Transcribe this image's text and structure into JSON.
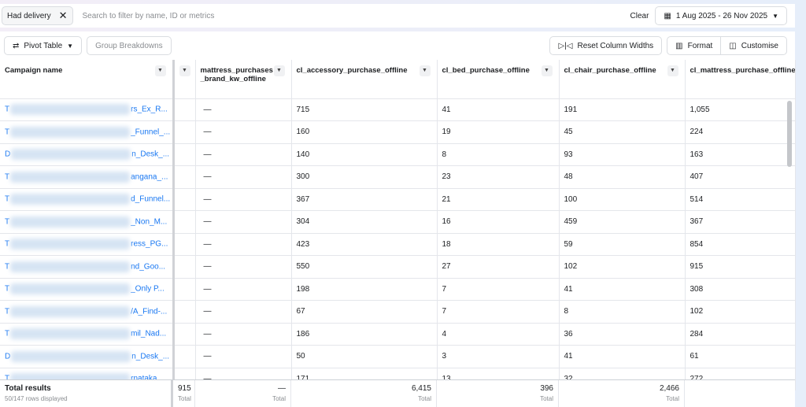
{
  "filter": {
    "chip": "Had delivery",
    "search_placeholder": "Search to filter by name, ID or metrics",
    "clear": "Clear",
    "date_range": "1 Aug 2025 - 26 Nov 2025"
  },
  "toolbar": {
    "pivot": "Pivot Table",
    "group": "Group Breakdowns",
    "reset": "Reset Column Widths",
    "format": "Format",
    "customise": "Customise"
  },
  "columns": [
    "Campaign name",
    "",
    "mattress_purchases_brand_kw_offline",
    "cl_accessory_purchase_offline",
    "cl_bed_purchase_offline",
    "cl_chair_purchase_offline",
    "cl_mattress_purchase_offline"
  ],
  "rows": [
    {
      "p": "T",
      "s": "rs_Ex_R...",
      "c": [
        "",
        "—",
        "715",
        "41",
        "191",
        "1,055"
      ]
    },
    {
      "p": "T",
      "s": "_Funnel_...",
      "c": [
        "",
        "—",
        "160",
        "19",
        "45",
        "224"
      ]
    },
    {
      "p": "D",
      "s": "n_Desk_...",
      "c": [
        "",
        "—",
        "140",
        "8",
        "93",
        "163"
      ]
    },
    {
      "p": "T",
      "s": "angana_...",
      "c": [
        "",
        "—",
        "300",
        "23",
        "48",
        "407"
      ]
    },
    {
      "p": "T",
      "s": "d_Funnel...",
      "c": [
        "",
        "—",
        "367",
        "21",
        "100",
        "514"
      ]
    },
    {
      "p": "T",
      "s": "_Non_M...",
      "c": [
        "",
        "—",
        "304",
        "16",
        "459",
        "367"
      ]
    },
    {
      "p": "T",
      "s": "ress_PG...",
      "c": [
        "",
        "—",
        "423",
        "18",
        "59",
        "854"
      ]
    },
    {
      "p": "T",
      "s": "nd_Goo...",
      "c": [
        "",
        "—",
        "550",
        "27",
        "102",
        "915"
      ]
    },
    {
      "p": "T",
      "s": "_Only P...",
      "c": [
        "",
        "—",
        "198",
        "7",
        "41",
        "308"
      ]
    },
    {
      "p": "T",
      "s": "/A_Find-...",
      "c": [
        "",
        "—",
        "67",
        "7",
        "8",
        "102"
      ]
    },
    {
      "p": "T",
      "s": "mil_Nad...",
      "c": [
        "",
        "—",
        "186",
        "4",
        "36",
        "284"
      ]
    },
    {
      "p": "D",
      "s": "n_Desk_...",
      "c": [
        "",
        "—",
        "50",
        "3",
        "41",
        "61"
      ]
    },
    {
      "p": "T",
      "s": "rnataka",
      "c": [
        "",
        "—",
        "171",
        "13",
        "32",
        "272"
      ]
    }
  ],
  "footer": {
    "label": "Total results",
    "sub": "50/147 rows displayed",
    "totals": [
      "915",
      "—",
      "6,415",
      "396",
      "2,466"
    ],
    "total_label": "Total"
  }
}
